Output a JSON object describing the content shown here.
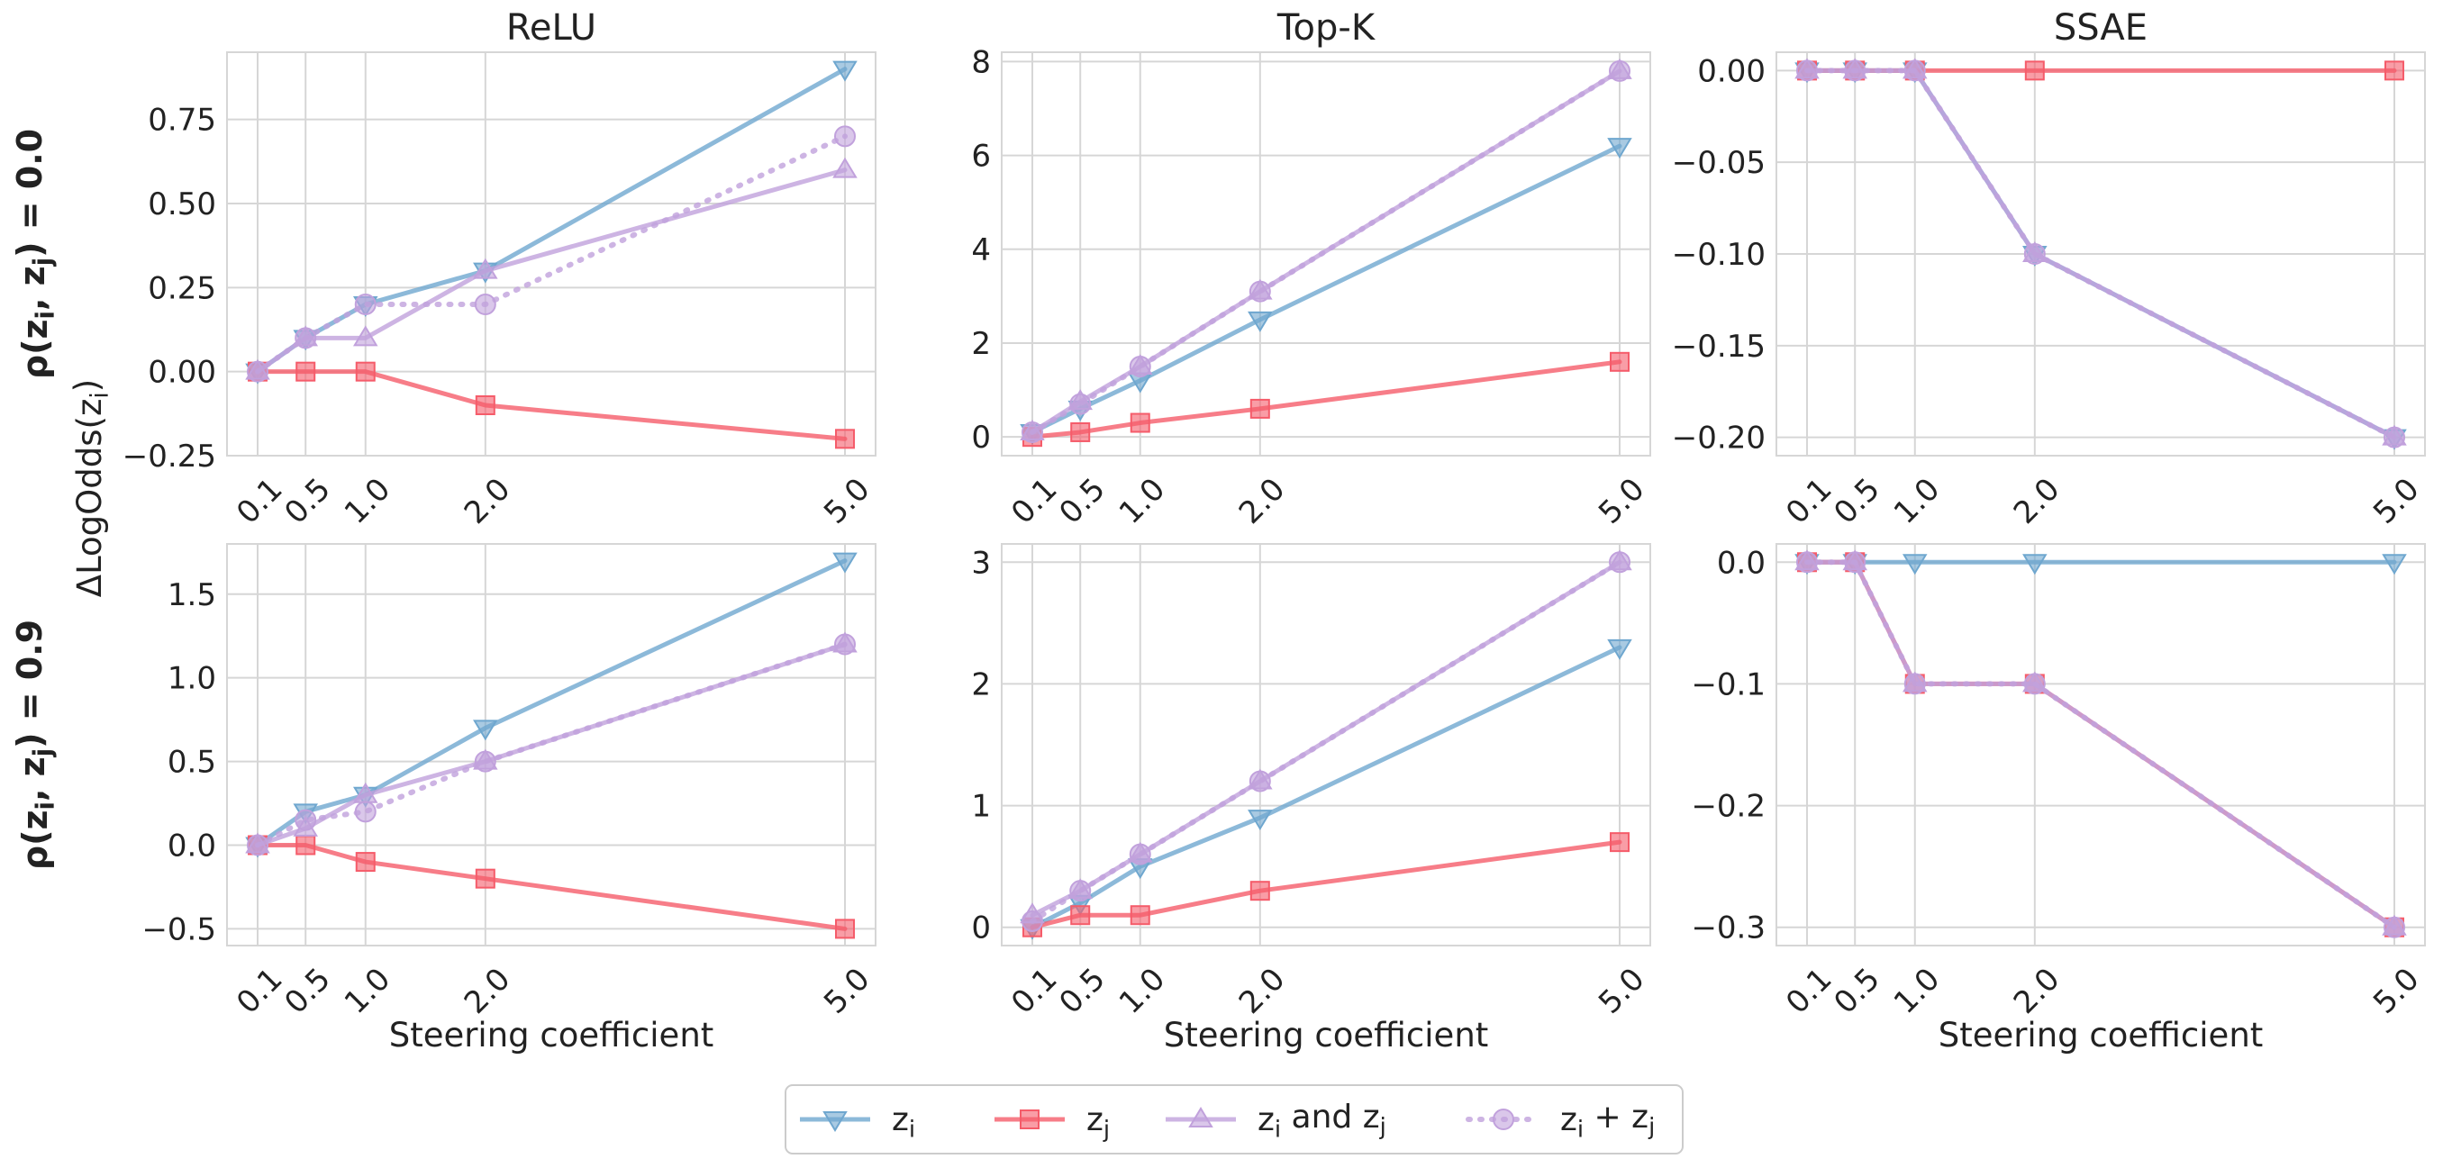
{
  "chart_data": {
    "type": "line",
    "ylabel": "ΔLogOdds(z",
    "ylabel_sub": "i",
    "ylabel_close": ")",
    "xlabel": "Steering coefficient",
    "columns": [
      "ReLU",
      "Top-K",
      "SSAE"
    ],
    "row_labels": [
      {
        "pre": "ρ(z",
        "a": "i",
        "mid": ", z",
        "b": "j",
        "post": ") = 0.0"
      },
      {
        "pre": "ρ(z",
        "a": "i",
        "mid": ", z",
        "b": "j",
        "post": ") = 0.9"
      }
    ],
    "x": [
      0.1,
      0.5,
      1.0,
      2.0,
      5.0
    ],
    "x_tick_labels": [
      "0.1",
      "0.5",
      "1.0",
      "2.0",
      "5.0"
    ],
    "series_styles": [
      {
        "key": "zi",
        "color": "#6fa7cf",
        "marker": "triangle-down",
        "dash": "solid"
      },
      {
        "key": "zj",
        "color": "#f55c6a",
        "marker": "square",
        "dash": "solid"
      },
      {
        "key": "both",
        "color": "#c1a1dc",
        "marker": "triangle-up",
        "dash": "solid"
      },
      {
        "key": "sum",
        "color": "#c1a1dc",
        "marker": "circle",
        "dash": "dotted"
      }
    ],
    "legend": [
      {
        "key": "zi",
        "base": "z",
        "sub": "i",
        "rest": ""
      },
      {
        "key": "zj",
        "base": "z",
        "sub": "j",
        "rest": ""
      },
      {
        "key": "both",
        "base": "z",
        "sub": "i",
        "rest": " and z",
        "sub2": "j"
      },
      {
        "key": "sum",
        "base": "z",
        "sub": "i",
        "rest": " + z",
        "sub2": "j"
      }
    ],
    "panels": [
      {
        "row": 0,
        "col": 0,
        "title": "ReLU",
        "ylim": [
          -0.25,
          0.95
        ],
        "yticks": [
          -0.25,
          0.0,
          0.25,
          0.5,
          0.75
        ],
        "ytick_labels": [
          "−0.25",
          "0.00",
          "0.25",
          "0.50",
          "0.75"
        ],
        "series": {
          "zi": [
            0.0,
            0.1,
            0.2,
            0.3,
            0.9
          ],
          "zj": [
            0.0,
            0.0,
            0.0,
            -0.1,
            -0.2
          ],
          "both": [
            0.0,
            0.1,
            0.1,
            0.3,
            0.6
          ],
          "sum": [
            0.0,
            0.1,
            0.2,
            0.2,
            0.7
          ]
        }
      },
      {
        "row": 0,
        "col": 1,
        "title": "Top-K",
        "ylim": [
          -0.4,
          8.2
        ],
        "yticks": [
          0,
          2,
          4,
          6,
          8
        ],
        "ytick_labels": [
          "0",
          "2",
          "4",
          "6",
          "8"
        ],
        "series": {
          "zi": [
            0.1,
            0.6,
            1.2,
            2.5,
            6.2
          ],
          "zj": [
            0.0,
            0.1,
            0.3,
            0.6,
            1.6
          ],
          "both": [
            0.1,
            0.75,
            1.5,
            3.1,
            7.8
          ],
          "sum": [
            0.1,
            0.7,
            1.5,
            3.1,
            7.8
          ]
        }
      },
      {
        "row": 0,
        "col": 2,
        "title": "SSAE",
        "ylim": [
          -0.21,
          0.01
        ],
        "yticks": [
          0.0,
          -0.05,
          -0.1,
          -0.15,
          -0.2
        ],
        "ytick_labels": [
          "0.00",
          "−0.05",
          "−0.10",
          "−0.15",
          "−0.20"
        ],
        "series": {
          "zi": [
            0.0,
            0.0,
            0.0,
            -0.1,
            -0.2
          ],
          "zj": [
            0.0,
            0.0,
            0.0,
            0.0,
            0.0
          ],
          "both": [
            0.0,
            0.0,
            0.0,
            -0.1,
            -0.2
          ],
          "sum": [
            0.0,
            0.0,
            0.0,
            -0.1,
            -0.2
          ]
        }
      },
      {
        "row": 1,
        "col": 0,
        "title": "",
        "ylim": [
          -0.6,
          1.8
        ],
        "yticks": [
          -0.5,
          0.0,
          0.5,
          1.0,
          1.5
        ],
        "ytick_labels": [
          "−0.5",
          "0.0",
          "0.5",
          "1.0",
          "1.5"
        ],
        "series": {
          "zi": [
            0.0,
            0.2,
            0.3,
            0.7,
            1.7
          ],
          "zj": [
            0.0,
            0.0,
            -0.1,
            -0.2,
            -0.5
          ],
          "both": [
            0.0,
            0.1,
            0.3,
            0.5,
            1.2
          ],
          "sum": [
            0.0,
            0.15,
            0.2,
            0.5,
            1.2
          ]
        }
      },
      {
        "row": 1,
        "col": 1,
        "title": "",
        "ylim": [
          -0.15,
          3.15
        ],
        "yticks": [
          0,
          1,
          2,
          3
        ],
        "ytick_labels": [
          "0",
          "1",
          "2",
          "3"
        ],
        "series": {
          "zi": [
            0.0,
            0.2,
            0.5,
            0.9,
            2.3
          ],
          "zj": [
            0.0,
            0.1,
            0.1,
            0.3,
            0.7
          ],
          "both": [
            0.1,
            0.3,
            0.6,
            1.2,
            3.0
          ],
          "sum": [
            0.05,
            0.3,
            0.6,
            1.2,
            3.0
          ]
        }
      },
      {
        "row": 1,
        "col": 2,
        "title": "",
        "ylim": [
          -0.315,
          0.015
        ],
        "yticks": [
          0.0,
          -0.1,
          -0.2,
          -0.3
        ],
        "ytick_labels": [
          "0.0",
          "−0.1",
          "−0.2",
          "−0.3"
        ],
        "series": {
          "zi": [
            0.0,
            0.0,
            0.0,
            0.0,
            0.0
          ],
          "zj": [
            0.0,
            0.0,
            -0.1,
            -0.1,
            -0.3
          ],
          "both": [
            0.0,
            0.0,
            -0.1,
            -0.1,
            -0.3
          ],
          "sum": [
            0.0,
            0.0,
            -0.1,
            -0.1,
            -0.3
          ]
        }
      }
    ]
  }
}
